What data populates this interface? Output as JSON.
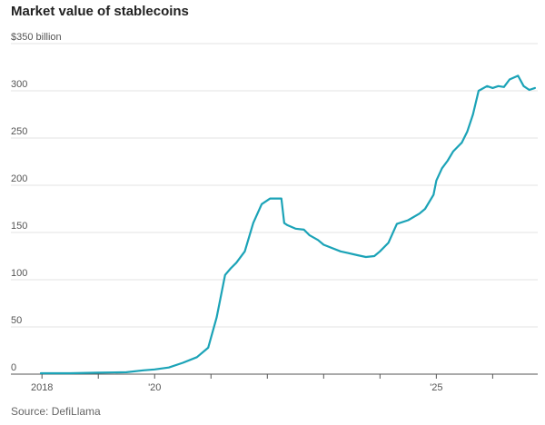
{
  "title": "Market value of stablecoins",
  "source": "Source: DefiLlama",
  "chart_data": {
    "type": "line",
    "title": "Market value of stablecoins",
    "ylabel": "$350 billion",
    "xlabel": "",
    "ylim": [
      0,
      350
    ],
    "xlim": [
      2017.9,
      2026.8
    ],
    "y_ticks": [
      {
        "value": 350,
        "label": "$350 billion"
      },
      {
        "value": 300,
        "label": "300"
      },
      {
        "value": 250,
        "label": "250"
      },
      {
        "value": 200,
        "label": "200"
      },
      {
        "value": 150,
        "label": "150"
      },
      {
        "value": 100,
        "label": "100"
      },
      {
        "value": 50,
        "label": "50"
      },
      {
        "value": 0,
        "label": "0"
      }
    ],
    "x_ticks": [
      {
        "value": 2018,
        "label": "2018"
      },
      {
        "value": 2019,
        "label": ""
      },
      {
        "value": 2020,
        "label": "'20"
      },
      {
        "value": 2021,
        "label": ""
      },
      {
        "value": 2022,
        "label": ""
      },
      {
        "value": 2023,
        "label": ""
      },
      {
        "value": 2024,
        "label": ""
      },
      {
        "value": 2025,
        "label": "'25"
      },
      {
        "value": 2026,
        "label": ""
      }
    ],
    "grid": true,
    "color": "#1ba3b7",
    "series": [
      {
        "x": [
          2017.98,
          2018.5,
          2019.0,
          2019.5,
          2019.8,
          2020.0,
          2020.25,
          2020.5,
          2020.75,
          2020.95,
          2021.1,
          2021.25,
          2021.35,
          2021.45,
          2021.6,
          2021.75,
          2021.9,
          2022.05,
          2022.2,
          2022.25,
          2022.3,
          2022.35,
          2022.5,
          2022.65,
          2022.75,
          2022.9,
          2023.0,
          2023.3,
          2023.6,
          2023.75,
          2023.9,
          2024.0,
          2024.15,
          2024.3,
          2024.5,
          2024.7,
          2024.8,
          2024.95,
          2025.0,
          2025.1,
          2025.2,
          2025.3,
          2025.45,
          2025.55,
          2025.65,
          2025.75,
          2025.9,
          2026.0,
          2026.1,
          2026.2,
          2026.3,
          2026.45,
          2026.55,
          2026.65,
          2026.75
        ],
        "y": [
          1,
          1,
          1.5,
          2,
          4,
          5,
          7,
          12,
          18,
          28,
          60,
          105,
          112,
          118,
          130,
          160,
          180,
          186,
          186,
          186,
          160,
          158,
          154,
          153,
          147,
          142,
          137,
          130,
          126,
          124,
          125,
          130,
          139,
          159,
          163,
          170,
          175,
          190,
          205,
          218,
          226,
          236,
          245,
          257,
          275,
          300,
          305,
          303,
          305,
          304,
          312,
          316,
          305,
          301,
          303
        ]
      }
    ]
  }
}
